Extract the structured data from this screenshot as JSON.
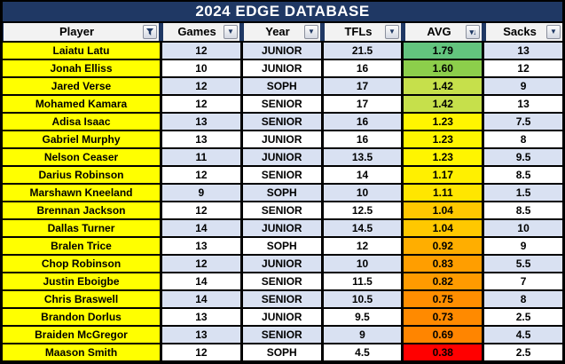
{
  "title": "2024 EDGE DATABASE",
  "colors": {
    "title_bg": "#1F3864",
    "title_text": "#FFFFFF",
    "header_bg": "#F2F2F2",
    "grid_line": "#000000",
    "player_col_bg": "#FFFF00",
    "band_blue": "#D9E1F2",
    "band_white": "#FFFFFF",
    "scale_top_green": "#63C47E",
    "scale_bottom_red": "#FF0000"
  },
  "icons": {
    "player_header": "funnel-filter-icon",
    "games_header": "chevron-down-icon",
    "year_header": "chevron-down-icon",
    "tfls_header": "chevron-down-icon",
    "avg_header": "sort-descending-icon",
    "sacks_header": "chevron-down-icon"
  },
  "columns": [
    {
      "label": "Player",
      "button": "filter"
    },
    {
      "label": "Games",
      "button": "dropdown"
    },
    {
      "label": "Year",
      "button": "dropdown"
    },
    {
      "label": "TFLs",
      "button": "dropdown"
    },
    {
      "label": "AVG",
      "button": "sort-descending"
    },
    {
      "label": "Sacks",
      "button": "dropdown"
    }
  ],
  "rows": [
    {
      "player": "Laiatu Latu",
      "games": "12",
      "year": "JUNIOR",
      "tfls": "21.5",
      "avg": "1.79",
      "sacks": "13",
      "avg_bg": "#63C47E"
    },
    {
      "player": "Jonah Elliss",
      "games": "10",
      "year": "JUNIOR",
      "tfls": "16",
      "avg": "1.60",
      "sacks": "12",
      "avg_bg": "#8CCE4B"
    },
    {
      "player": "Jared Verse",
      "games": "12",
      "year": "SOPH",
      "tfls": "17",
      "avg": "1.42",
      "sacks": "9",
      "avg_bg": "#C6E04B"
    },
    {
      "player": "Mohamed Kamara",
      "games": "12",
      "year": "SENIOR",
      "tfls": "17",
      "avg": "1.42",
      "sacks": "13",
      "avg_bg": "#C6E04B"
    },
    {
      "player": "Adisa Isaac",
      "games": "13",
      "year": "SENIOR",
      "tfls": "16",
      "avg": "1.23",
      "sacks": "7.5",
      "avg_bg": "#FFF500"
    },
    {
      "player": "Gabriel Murphy",
      "games": "13",
      "year": "JUNIOR",
      "tfls": "16",
      "avg": "1.23",
      "sacks": "8",
      "avg_bg": "#FFF500"
    },
    {
      "player": "Nelson Ceaser",
      "games": "11",
      "year": "JUNIOR",
      "tfls": "13.5",
      "avg": "1.23",
      "sacks": "9.5",
      "avg_bg": "#FFF500"
    },
    {
      "player": "Darius Robinson",
      "games": "12",
      "year": "SENIOR",
      "tfls": "14",
      "avg": "1.17",
      "sacks": "8.5",
      "avg_bg": "#FFF000"
    },
    {
      "player": "Marshawn Kneeland",
      "games": "9",
      "year": "SOPH",
      "tfls": "10",
      "avg": "1.11",
      "sacks": "1.5",
      "avg_bg": "#FFE600"
    },
    {
      "player": "Brennan Jackson",
      "games": "12",
      "year": "SENIOR",
      "tfls": "12.5",
      "avg": "1.04",
      "sacks": "8.5",
      "avg_bg": "#FFC800"
    },
    {
      "player": "Dallas Turner",
      "games": "14",
      "year": "JUNIOR",
      "tfls": "14.5",
      "avg": "1.04",
      "sacks": "10",
      "avg_bg": "#FFC800"
    },
    {
      "player": "Bralen Trice",
      "games": "13",
      "year": "SOPH",
      "tfls": "12",
      "avg": "0.92",
      "sacks": "9",
      "avg_bg": "#FFAE00"
    },
    {
      "player": "Chop Robinson",
      "games": "12",
      "year": "JUNIOR",
      "tfls": "10",
      "avg": "0.83",
      "sacks": "5.5",
      "avg_bg": "#FF9E00"
    },
    {
      "player": "Justin Eboigbe",
      "games": "14",
      "year": "SENIOR",
      "tfls": "11.5",
      "avg": "0.82",
      "sacks": "7",
      "avg_bg": "#FF9B00"
    },
    {
      "player": "Chris Braswell",
      "games": "14",
      "year": "SENIOR",
      "tfls": "10.5",
      "avg": "0.75",
      "sacks": "8",
      "avg_bg": "#FF8E00"
    },
    {
      "player": "Brandon Dorlus",
      "games": "13",
      "year": "JUNIOR",
      "tfls": "9.5",
      "avg": "0.73",
      "sacks": "2.5",
      "avg_bg": "#FF8A00"
    },
    {
      "player": "Braiden McGregor",
      "games": "13",
      "year": "SENIOR",
      "tfls": "9",
      "avg": "0.69",
      "sacks": "4.5",
      "avg_bg": "#FF8500"
    },
    {
      "player": "Maason Smith",
      "games": "12",
      "year": "SOPH",
      "tfls": "4.5",
      "avg": "0.38",
      "sacks": "2.5",
      "avg_bg": "#FF0000"
    }
  ]
}
